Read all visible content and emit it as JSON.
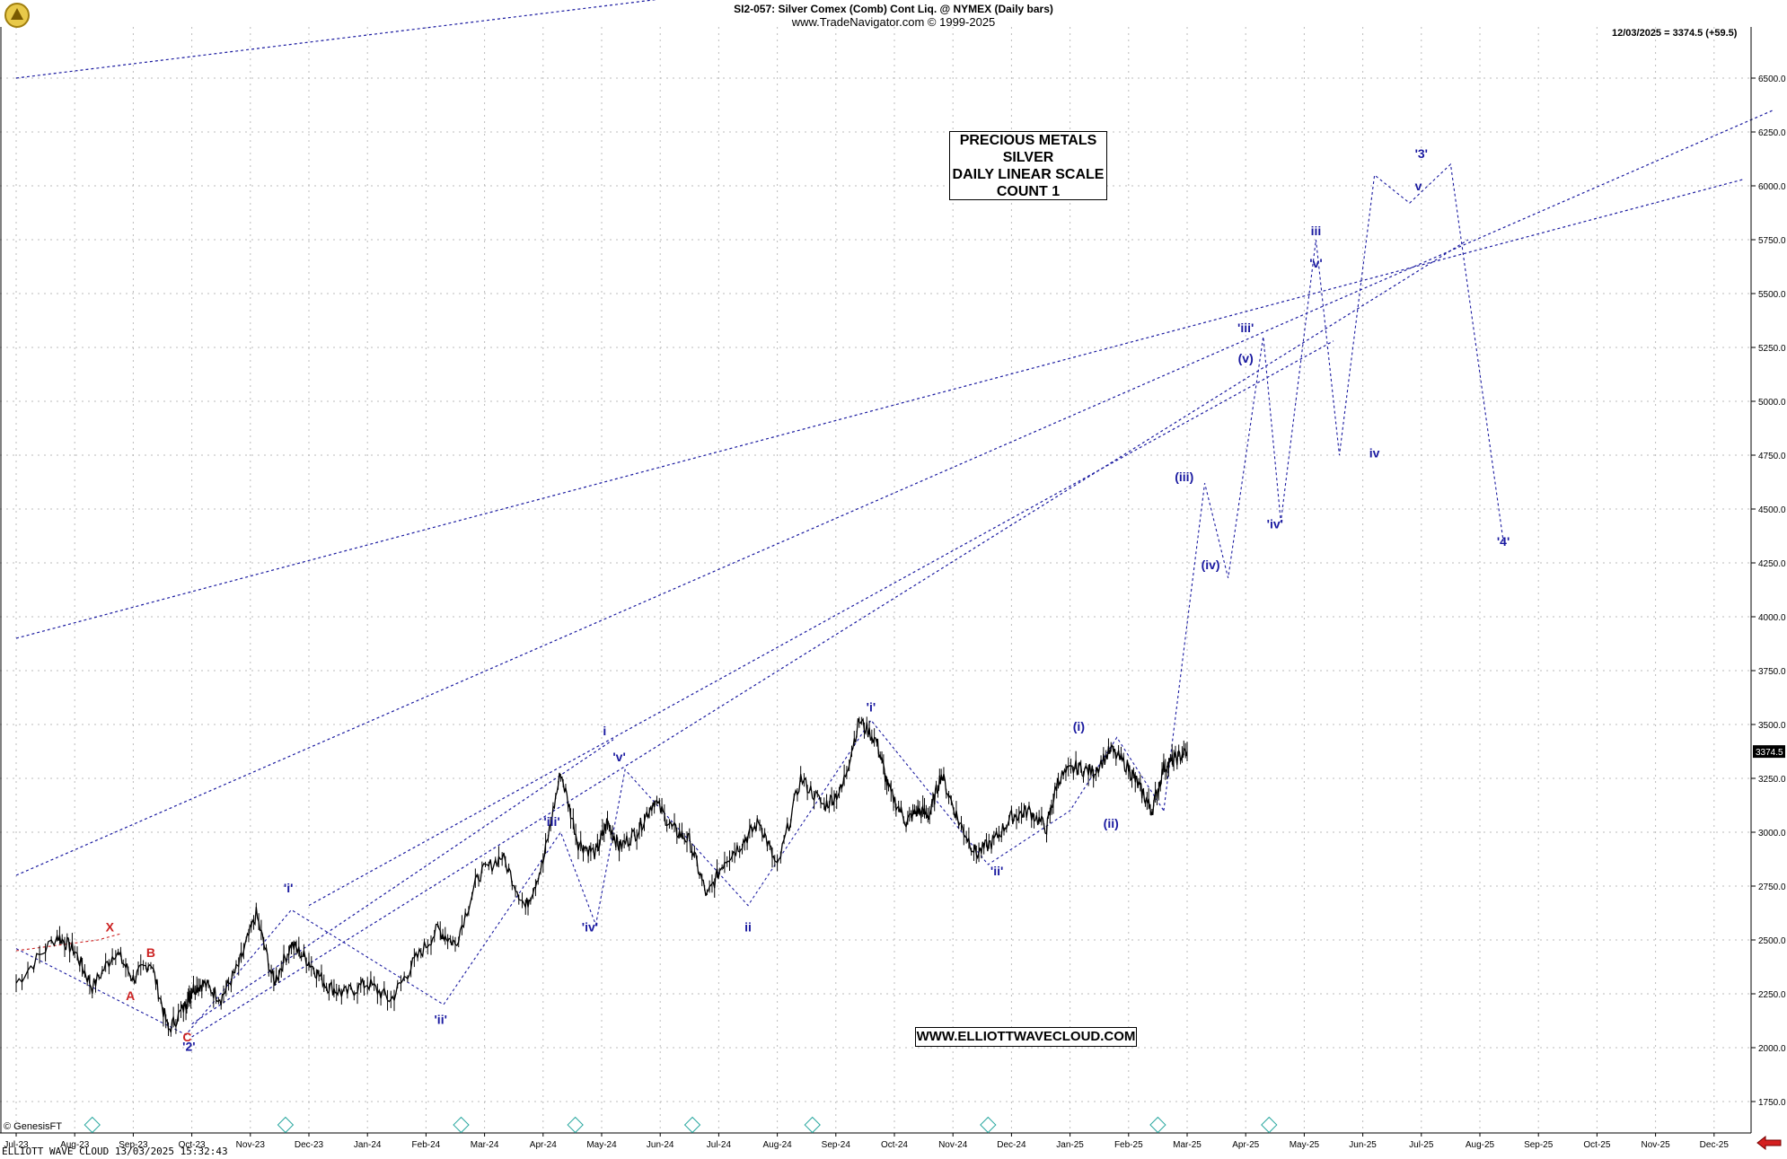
{
  "header": {
    "title": "SI2-057:  Silver Comex (Comb) Cont Liq. @ NYMEX  (Daily bars)",
    "subtitle": "www.TradeNavigator.com © 1999-2025",
    "last_quote": "12/03/2025 = 3374.5 (+59.5)"
  },
  "info_box": {
    "lines": [
      "PRECIOUS METALS",
      "SILVER",
      "DAILY LINEAR SCALE",
      "COUNT 1"
    ]
  },
  "website": "WWW.ELLIOTTWAVECLOUD.COM",
  "footer": {
    "left": "ELLIOTT WAVE CLOUD   13/03/2025 15:32:43",
    "credit": "© GenesisFT"
  },
  "colors": {
    "wave_blue": "#1a1aa0",
    "wave_red": "#cc2222",
    "price": "#000000",
    "grid": "#bbbbbb",
    "marker": "#2aa8a0"
  },
  "chart_data": {
    "type": "line",
    "title": "SI2-057:  Silver Comex (Comb) Cont Liq. @ NYMEX  (Daily bars)",
    "xlabel": "",
    "ylabel": "",
    "ylim": [
      1600,
      6750
    ],
    "x_tick_labels": [
      "Jul-23",
      "Aug-23",
      "Sep-23",
      "Oct-23",
      "Nov-23",
      "Dec-23",
      "Jan-24",
      "Feb-24",
      "Mar-24",
      "Apr-24",
      "May-24",
      "Jun-24",
      "Jul-24",
      "Aug-24",
      "Sep-24",
      "Oct-24",
      "Nov-24",
      "Dec-24",
      "Jan-25",
      "Feb-25",
      "Mar-25",
      "Apr-25",
      "May-25",
      "Jun-25",
      "Jul-25",
      "Aug-25",
      "Sep-25",
      "Oct-25",
      "Nov-25",
      "Dec-25"
    ],
    "y_ticks": [
      1750,
      2000,
      2250,
      2500,
      2750,
      3000,
      3250,
      3500,
      3750,
      4000,
      4250,
      4500,
      4750,
      5000,
      5250,
      5500,
      5750,
      6000,
      6250,
      6500
    ],
    "y_tick_labels": [
      "1750.0",
      "2000.0",
      "2250.0",
      "2500.0",
      "2750.0",
      "3000.0",
      "3250.0",
      "3500.0",
      "3750.0",
      "4000.0",
      "4250.0",
      "4500.0",
      "4750.0",
      "5000.0",
      "5250.0",
      "5500.0",
      "5750.0",
      "6000.0",
      "6250.0",
      "6500.0"
    ],
    "last_price_label": "3374.5",
    "last_price": 3374.5,
    "price_path": {
      "x": [
        0,
        0.7,
        1.0,
        1.3,
        1.7,
        2.0,
        2.3,
        2.6,
        2.9,
        3.0,
        3.2,
        3.5,
        3.8,
        4.1,
        4.4,
        4.7,
        5.0,
        5.3,
        5.6,
        6.0,
        6.4,
        6.8,
        7.2,
        7.5,
        7.9,
        8.3,
        8.7,
        9.0,
        9.3,
        9.6,
        9.9,
        10.1,
        10.3,
        10.6,
        10.9,
        11.2,
        11.5,
        11.8,
        12.1,
        12.4,
        12.7,
        13.0,
        13.4,
        13.8,
        14.1,
        14.4,
        14.7,
        14.9,
        15.2,
        15.4,
        15.6,
        15.8,
        16.1,
        16.4,
        16.7,
        17.0,
        17.3,
        17.6,
        17.8,
        18.1,
        18.4,
        18.7,
        19.0,
        19.2,
        19.4,
        19.6,
        19.8,
        20.0
      ],
      "y": [
        2300,
        2520,
        2450,
        2280,
        2450,
        2320,
        2400,
        2080,
        2200,
        2270,
        2300,
        2230,
        2380,
        2620,
        2300,
        2480,
        2400,
        2290,
        2250,
        2300,
        2220,
        2400,
        2550,
        2480,
        2800,
        2890,
        2650,
        2860,
        3280,
        2950,
        2900,
        3050,
        2930,
        3000,
        3150,
        3020,
        2960,
        2700,
        2870,
        2950,
        3050,
        2830,
        3250,
        3120,
        3200,
        3520,
        3420,
        3200,
        3050,
        3100,
        3080,
        3270,
        3050,
        2900,
        2960,
        3070,
        3100,
        3020,
        3250,
        3300,
        3280,
        3380,
        3300,
        3200,
        3100,
        3300,
        3340,
        3374.5
      ]
    },
    "wave_path_future": {
      "x": [
        19.6,
        20.3,
        20.7,
        21.3,
        21.6,
        22.2,
        22.6,
        23.2,
        23.8,
        24.5,
        25.4
      ],
      "y": [
        3100,
        4620,
        4180,
        5300,
        4440,
        5750,
        4750,
        6050,
        5920,
        6100,
        4350
      ]
    },
    "labels_blue": [
      "'2'",
      "'i'",
      "'ii'",
      "'iii'",
      "'iv'",
      "'v'",
      "i",
      "ii",
      "'i'",
      "'ii'",
      "(i)",
      "(ii)",
      "(iii)",
      "(iv)",
      "(v)",
      "'iii'",
      "'iv'",
      "'v'",
      "iii",
      "iv",
      "v",
      "'3'",
      "'4'"
    ],
    "labels_red": [
      "X",
      "A",
      "B",
      "C"
    ],
    "channel_lines": [
      {
        "x": [
          0,
          11.4
        ],
        "y": [
          6500,
          6880
        ]
      },
      {
        "x": [
          0,
          29.5
        ],
        "y": [
          3900,
          6030
        ]
      },
      {
        "x": [
          0,
          30.0
        ],
        "y": [
          2800,
          6350
        ]
      },
      {
        "x": [
          3.0,
          24.8
        ],
        "y": [
          2050,
          5750
        ]
      },
      {
        "x": [
          5.0,
          22.5
        ],
        "y": [
          2660,
          5280
        ]
      },
      {
        "x": [
          3.0,
          10.2
        ],
        "y": [
          2110,
          3430
        ]
      }
    ]
  }
}
